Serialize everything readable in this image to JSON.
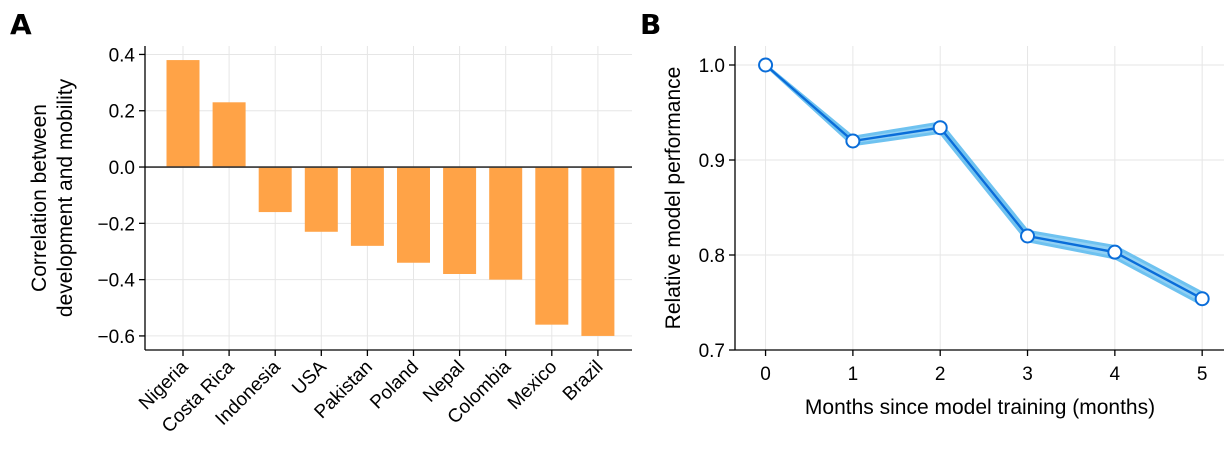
{
  "chart_data": [
    {
      "panel": "A",
      "type": "bar",
      "title": "",
      "xlabel": "",
      "ylabel_lines": [
        "Correlation between",
        "development and mobility"
      ],
      "categories": [
        "Nigeria",
        "Costa Rica",
        "Indonesia",
        "USA",
        "Pakistan",
        "Poland",
        "Nepal",
        "Colombia",
        "Mexico",
        "Brazil"
      ],
      "values": [
        0.38,
        0.23,
        -0.16,
        -0.23,
        -0.28,
        -0.34,
        -0.38,
        -0.4,
        -0.56,
        -0.6
      ],
      "ylim": [
        -0.65,
        0.43
      ],
      "yticks": [
        0.4,
        0.2,
        0.0,
        -0.2,
        -0.4,
        -0.6
      ],
      "ytick_labels": [
        "0.4",
        "0.2",
        "0.0",
        "−0.2",
        "−0.4",
        "−0.6"
      ],
      "grid": true,
      "bar_color": "#FFA347"
    },
    {
      "panel": "B",
      "type": "line",
      "title": "",
      "xlabel": "Months since model training (months)",
      "ylabel": "Relative model performance",
      "x": [
        0,
        1,
        2,
        3,
        4,
        5
      ],
      "y": [
        1.0,
        0.92,
        0.934,
        0.82,
        0.803,
        0.754
      ],
      "band_lower": [
        1.0,
        0.916,
        0.929,
        0.815,
        0.797,
        0.748
      ],
      "band_upper": [
        1.0,
        0.924,
        0.939,
        0.825,
        0.809,
        0.76
      ],
      "xlim": [
        -0.35,
        5.25
      ],
      "ylim": [
        0.7,
        1.02
      ],
      "xticks": [
        0,
        1,
        2,
        3,
        4,
        5
      ],
      "xtick_labels": [
        "0",
        "1",
        "2",
        "3",
        "4",
        "5"
      ],
      "yticks": [
        0.7,
        0.8,
        0.9,
        1.0
      ],
      "ytick_labels": [
        "0.7",
        "0.8",
        "0.9",
        "1.0"
      ],
      "grid": true,
      "line_color": "#0A6DD9",
      "band_color": "#6EC2F0"
    }
  ]
}
